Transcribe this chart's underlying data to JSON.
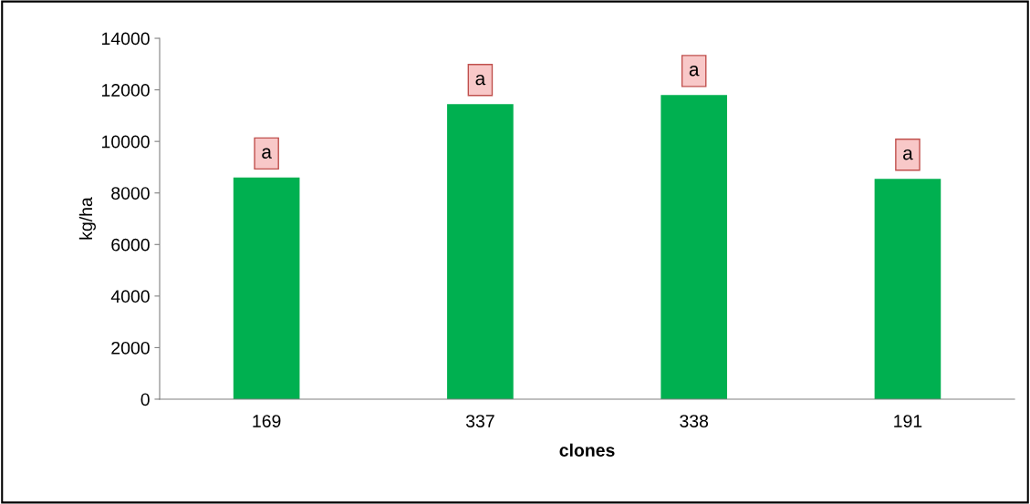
{
  "chart_data": {
    "type": "bar",
    "xlabel": "clones",
    "ylabel": "kg/ha",
    "categories": [
      "169",
      "337",
      "338",
      "191"
    ],
    "values": [
      8600,
      11450,
      11800,
      8550
    ],
    "color": "#00b050",
    "ylim": [
      0,
      14000
    ],
    "yticks": [
      0,
      2000,
      4000,
      6000,
      8000,
      10000,
      12000,
      14000
    ],
    "grid": false,
    "legend": false,
    "annotations": [
      {
        "text": "a",
        "x": "169",
        "y": 8600
      },
      {
        "text": "a",
        "x": "337",
        "y": 11450
      },
      {
        "text": "a",
        "x": "338",
        "y": 11800
      },
      {
        "text": "a",
        "x": "191",
        "y": 8550
      }
    ]
  }
}
